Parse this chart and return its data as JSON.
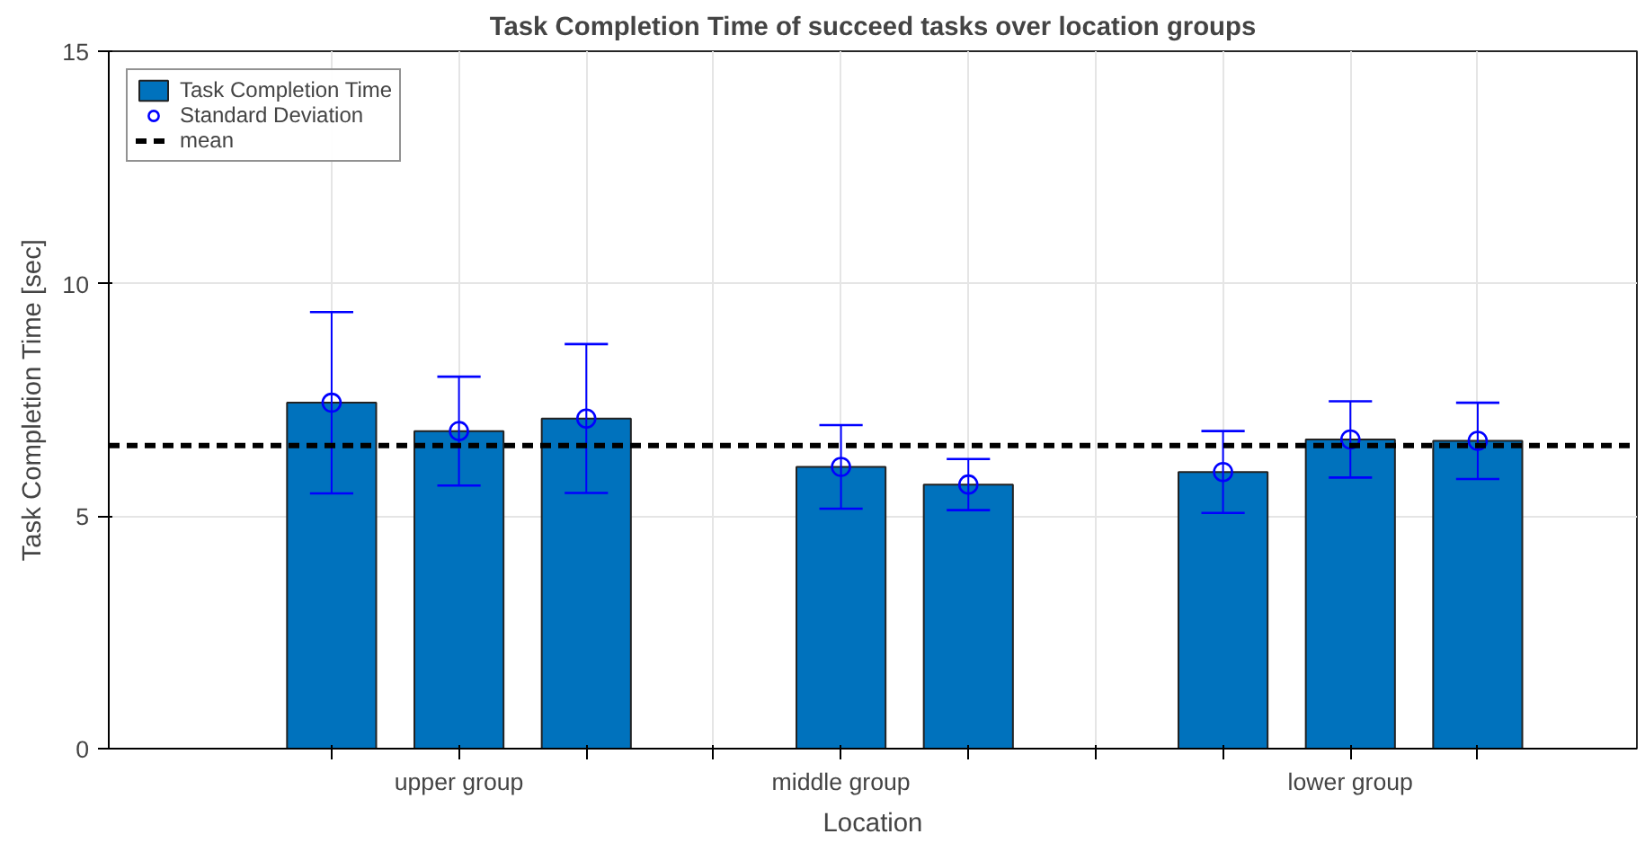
{
  "chart_data": {
    "type": "bar",
    "title": "Task Completion Time of succeed tasks over location groups",
    "xlabel": "Location",
    "ylabel": "Task Completion Time [sec]",
    "categories": [
      null,
      "upper group",
      null,
      null,
      "middle group",
      null,
      null,
      null,
      "lower group",
      null
    ],
    "series": [
      {
        "name": "Task Completion Time",
        "color": "#0072bd",
        "values": [
          7.44,
          6.83,
          7.1,
          null,
          6.06,
          5.68,
          null,
          5.95,
          6.65,
          6.62
        ]
      },
      {
        "name": "Standard Deviation",
        "type": "scatter",
        "marker": "circle",
        "color": "#0000ff",
        "values": [
          7.44,
          6.83,
          7.1,
          null,
          6.06,
          5.68,
          null,
          5.95,
          6.65,
          6.62
        ],
        "errors": [
          1.95,
          1.17,
          1.6,
          null,
          0.9,
          0.55,
          null,
          0.88,
          0.82,
          0.82
        ]
      }
    ],
    "ref_lines": [
      {
        "axis": "y",
        "value": 6.52,
        "label": "mean",
        "color": "#000000",
        "line_style": "dashed"
      }
    ],
    "ylim": [
      0,
      15
    ],
    "yticks": [
      0,
      5,
      10,
      15
    ],
    "grid": true,
    "legend": "top left"
  }
}
